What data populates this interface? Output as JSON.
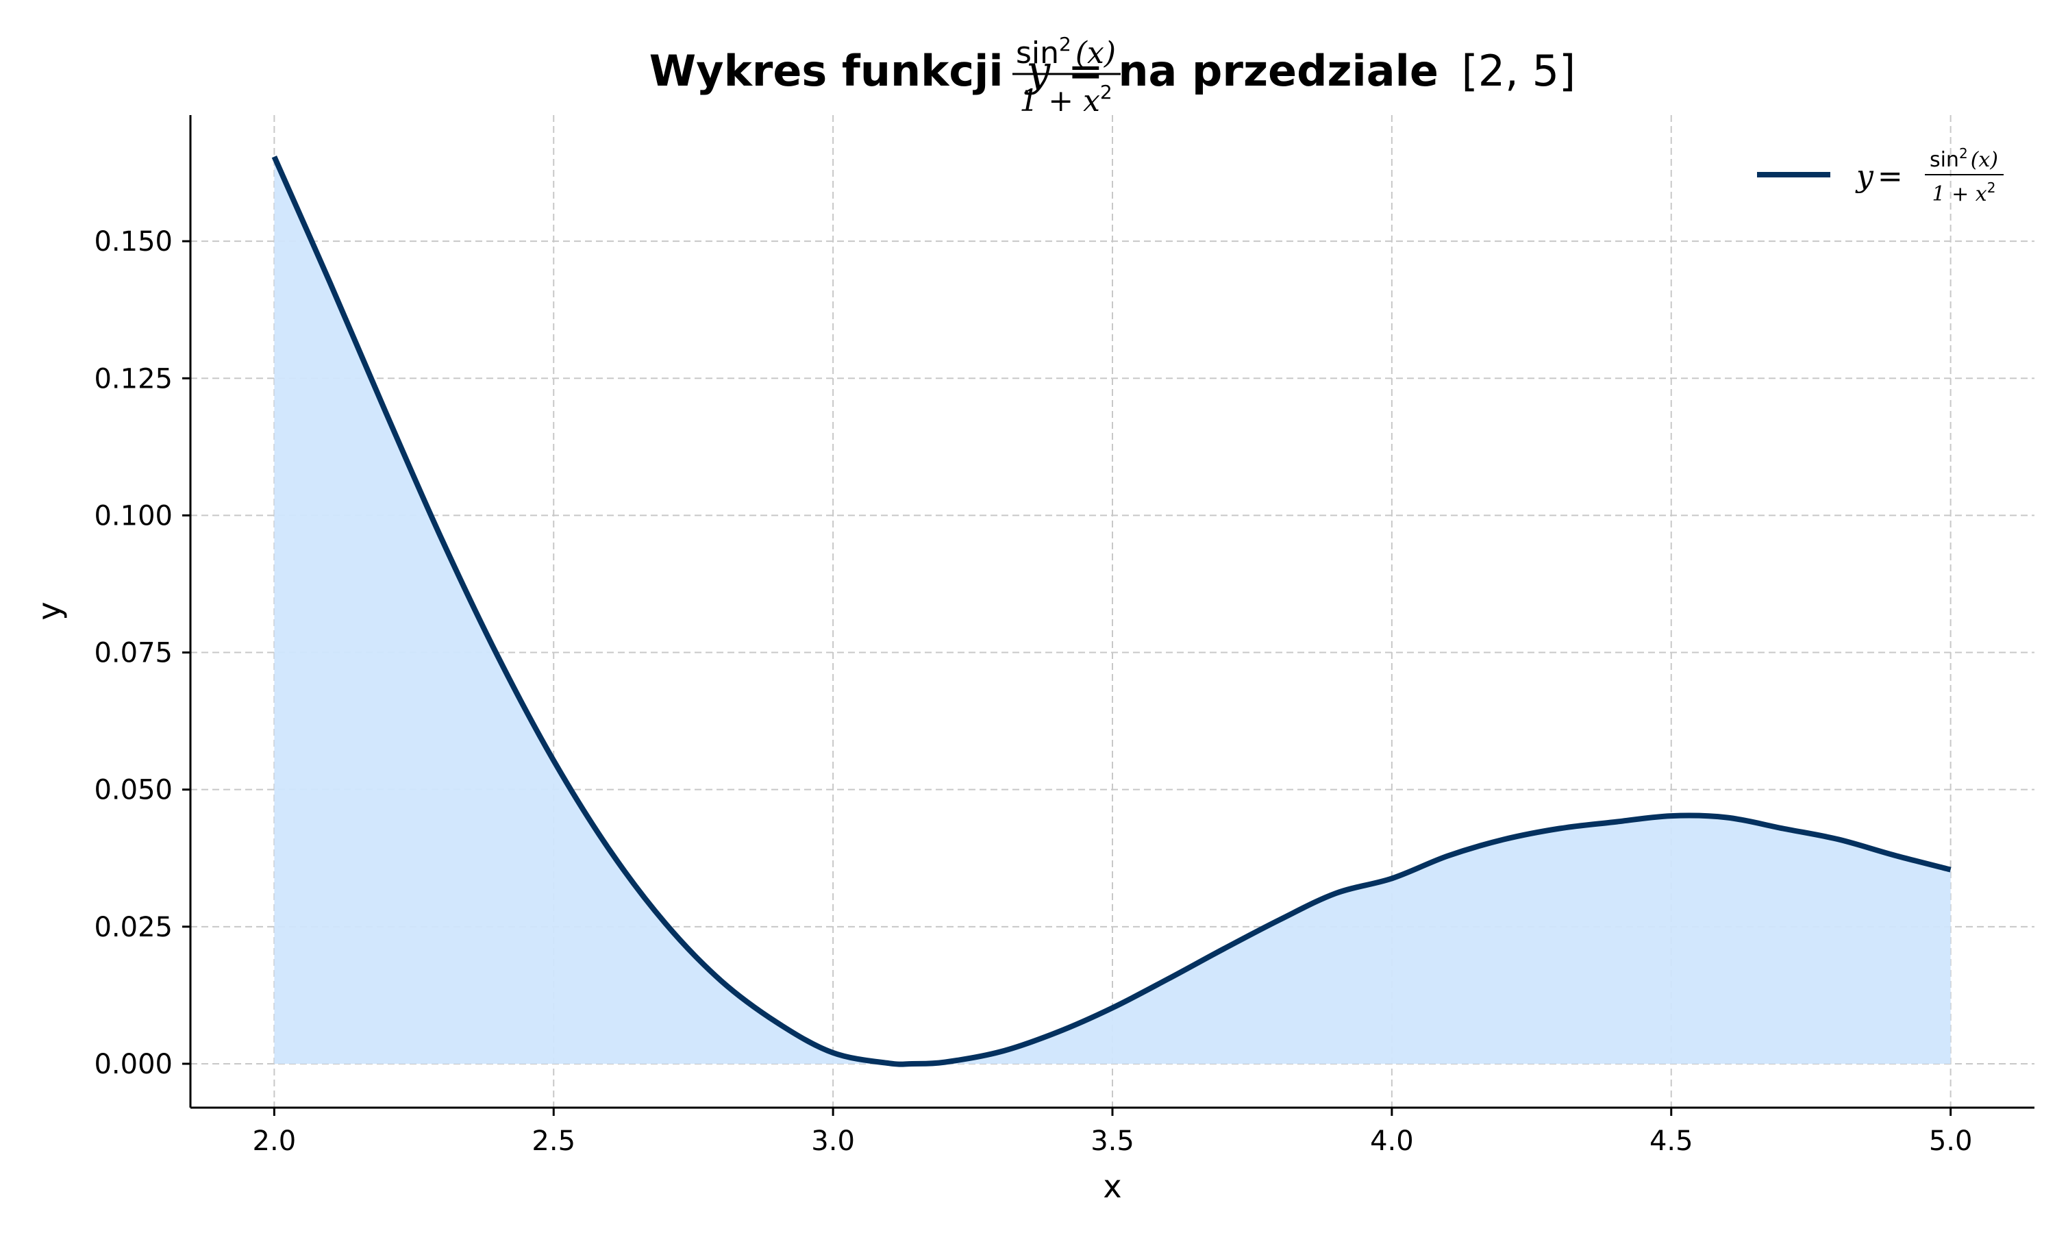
{
  "chart_data": {
    "type": "area",
    "title": {
      "prefix": "Wykres funkcji",
      "y_var": "y",
      "equals": "=",
      "numerator": "sin",
      "numerator_exp": "2",
      "numerator_arg": "(x)",
      "denominator": "1 + x",
      "denominator_exp": "2",
      "suffix": "na przedziale",
      "interval": "[2, 5]"
    },
    "xlabel": "x",
    "ylabel": "y",
    "xlim": [
      1.85,
      5.15
    ],
    "ylim": [
      -0.008,
      0.173
    ],
    "x_ticks": [
      2.0,
      2.5,
      3.0,
      3.5,
      4.0,
      4.5,
      5.0
    ],
    "x_tick_labels": [
      "2.0",
      "2.5",
      "3.0",
      "3.5",
      "4.0",
      "4.5",
      "5.0"
    ],
    "y_ticks": [
      0.0,
      0.025,
      0.05,
      0.075,
      0.1,
      0.125,
      0.15
    ],
    "y_tick_labels": [
      "0.000",
      "0.025",
      "0.050",
      "0.075",
      "0.100",
      "0.125",
      "0.150"
    ],
    "grid": true,
    "legend_position": "top-right",
    "series": [
      {
        "label": {
          "y_var": "y",
          "equals": "=",
          "numerator": "sin",
          "numerator_exp": "2",
          "numerator_arg": "(x)",
          "denominator": "1 + x",
          "denominator_exp": "2"
        },
        "color": "#04315f",
        "fill_color": "#d0e6fd",
        "x": [
          2.0,
          2.1,
          2.2,
          2.3,
          2.4,
          2.5,
          2.6,
          2.7,
          2.8,
          2.9,
          3.0,
          3.1,
          3.1416,
          3.2,
          3.3,
          3.4,
          3.5,
          3.6,
          3.7,
          3.8,
          3.9,
          4.0,
          4.1,
          4.2,
          4.3,
          4.4,
          4.5,
          4.6,
          4.7,
          4.8,
          4.9,
          5.0
        ],
        "y": [
          0.1654,
          0.1424,
          0.1187,
          0.0956,
          0.0743,
          0.0553,
          0.039,
          0.0256,
          0.0151,
          0.0075,
          0.002,
          0.0001,
          0.0,
          0.0003,
          0.0022,
          0.0057,
          0.0102,
          0.0155,
          0.021,
          0.0263,
          0.0311,
          0.0338,
          0.0379,
          0.0409,
          0.0429,
          0.0441,
          0.0452,
          0.0449,
          0.0429,
          0.0409,
          0.038,
          0.0354
        ]
      }
    ]
  }
}
